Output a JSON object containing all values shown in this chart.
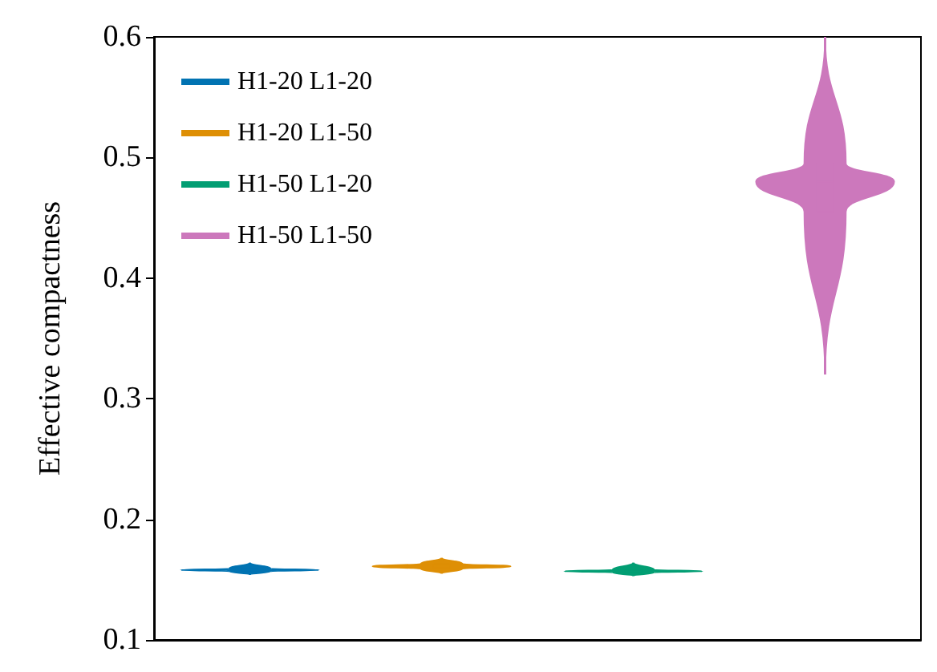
{
  "chart_data": {
    "type": "box",
    "ylabel": "Effective compactness",
    "categories": [
      null,
      null,
      null,
      null
    ],
    "series": [
      {
        "name": "H1-20 L1-20",
        "color": "#0173b2",
        "boxes": [
          {
            "low": 0.154,
            "q1": 0.157,
            "median": 0.158,
            "q3": 0.159,
            "high": 0.164
          },
          null,
          null,
          null
        ]
      },
      {
        "name": "H1-20 L1-50",
        "color": "#de8f05",
        "boxes": [
          null,
          {
            "low": 0.155,
            "q1": 0.159,
            "median": 0.161,
            "q3": 0.163,
            "high": 0.168
          },
          null,
          null
        ]
      },
      {
        "name": "H1-50 L1-20",
        "color": "#029e73",
        "boxes": [
          null,
          null,
          {
            "low": 0.153,
            "q1": 0.156,
            "median": 0.157,
            "q3": 0.158,
            "high": 0.164
          },
          null
        ]
      },
      {
        "name": "H1-50 L1-50",
        "color": "#cc78bc",
        "boxes": [
          null,
          null,
          null,
          {
            "low": 0.32,
            "q1": 0.455,
            "median": 0.48,
            "q3": 0.495,
            "high": 0.6
          }
        ]
      }
    ],
    "ylim": [
      0.1,
      0.6
    ],
    "yticks": [
      0.1,
      0.2,
      0.3,
      0.4,
      0.5,
      0.6
    ],
    "legend": "top left",
    "grid": false
  }
}
